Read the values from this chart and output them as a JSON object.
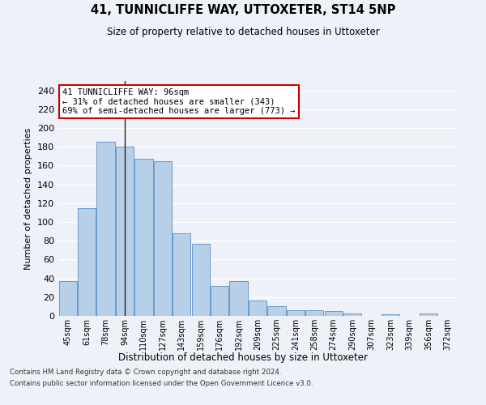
{
  "title": "41, TUNNICLIFFE WAY, UTTOXETER, ST14 5NP",
  "subtitle": "Size of property relative to detached houses in Uttoxeter",
  "xlabel": "Distribution of detached houses by size in Uttoxeter",
  "ylabel": "Number of detached properties",
  "categories": [
    "45sqm",
    "61sqm",
    "78sqm",
    "94sqm",
    "110sqm",
    "127sqm",
    "143sqm",
    "159sqm",
    "176sqm",
    "192sqm",
    "209sqm",
    "225sqm",
    "241sqm",
    "258sqm",
    "274sqm",
    "290sqm",
    "307sqm",
    "323sqm",
    "339sqm",
    "356sqm",
    "372sqm"
  ],
  "values": [
    37,
    115,
    185,
    180,
    167,
    165,
    88,
    77,
    32,
    37,
    16,
    10,
    6,
    6,
    5,
    3,
    0,
    2,
    0,
    3,
    0
  ],
  "bar_color": "#b8cfe8",
  "bar_edge_color": "#6699cc",
  "vline_index": 3,
  "annotation_line1": "41 TUNNICLIFFE WAY: 96sqm",
  "annotation_line2": "← 31% of detached houses are smaller (343)",
  "annotation_line3": "69% of semi-detached houses are larger (773) →",
  "annotation_box_color": "#ffffff",
  "annotation_box_edge": "#cc0000",
  "ylim": [
    0,
    250
  ],
  "yticks": [
    0,
    20,
    40,
    60,
    80,
    100,
    120,
    140,
    160,
    180,
    200,
    220,
    240
  ],
  "background_color": "#eef2f8",
  "grid_color": "#ffffff",
  "footer_line1": "Contains HM Land Registry data © Crown copyright and database right 2024.",
  "footer_line2": "Contains public sector information licensed under the Open Government Licence v3.0."
}
